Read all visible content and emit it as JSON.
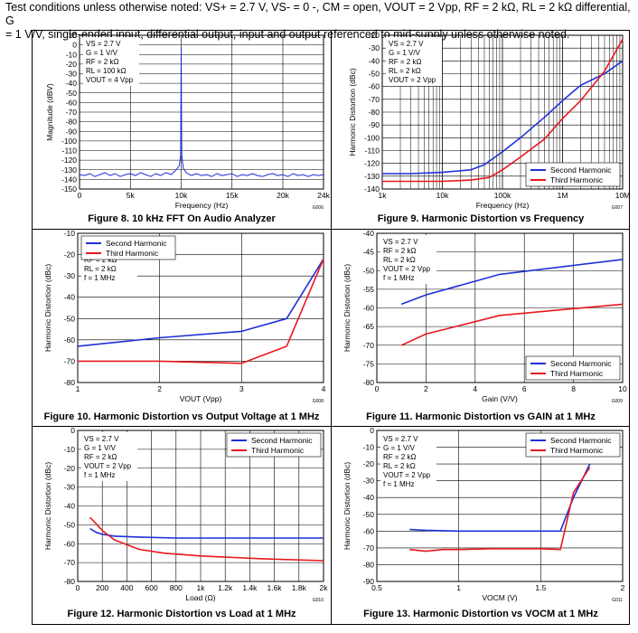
{
  "intro": {
    "line1": "Test conditions unless otherwise noted: VS+ = 2.7 V, VS- = 0 -, CM = open, VOUT = 2 Vpp, RF = 2 kΩ, RL = 2 kΩ differential, G",
    "line2": "= 1 V/V, single-ended input, differential output, input and output referenced to mid-supply unless otherwise noted."
  },
  "colors": {
    "second": "#1f2fd8",
    "third": "#e8181c",
    "fft": "#1f2fd8"
  },
  "captions": {
    "fig8": "Figure 8. 10 kHz FFT On Audio Analyzer",
    "fig9": "Figure 9. Harmonic Distortion vs Frequency",
    "fig10": "Figure 10. Harmonic Distortion vs Output Voltage at 1 MHz",
    "fig11": "Figure 11. Harmonic Distortion vs GAIN at 1 MHz",
    "fig12": "Figure 12. Harmonic Distortion vs Load at 1 MHz",
    "fig13": "Figure 13. Harmonic Distortion vs VOCM at 1 MHz"
  },
  "chart_data": [
    {
      "id": "fig8",
      "type": "line",
      "code": "G006",
      "xlabel": "Frequency (Hz)",
      "ylabel": "Magnitude (dBV)",
      "xlim": [
        0,
        24000
      ],
      "ylim": [
        -150,
        10
      ],
      "xticks": [
        0,
        5000,
        10000,
        15000,
        20000,
        24000
      ],
      "xticklabels": [
        "0",
        "5k",
        "10k",
        "15k",
        "20k",
        "24k"
      ],
      "yticks": [
        10,
        0,
        -10,
        -20,
        -30,
        -40,
        -50,
        -60,
        -70,
        -80,
        -90,
        -100,
        -110,
        -120,
        -130,
        -140,
        -150
      ],
      "annotations": [
        "VS = 2.7 V",
        "G = 1 V/V",
        "RF = 2 kΩ",
        "RL = 100 kΩ",
        "VOUT = 4 Vpp"
      ],
      "series": [
        {
          "x": [
            0,
            500,
            1000,
            1500,
            2000,
            2500,
            3000,
            3500,
            4000,
            4500,
            5000,
            5500,
            6000,
            6500,
            7000,
            7500,
            8000,
            8500,
            9000,
            9500,
            9800,
            9950,
            10000,
            10050,
            10200,
            10500,
            11000,
            11500,
            12000,
            12500,
            13000,
            13500,
            14000,
            14500,
            15000,
            15500,
            16000,
            16500,
            17000,
            17500,
            18000,
            18500,
            19000,
            19500,
            20000,
            20500,
            21000,
            21500,
            22000,
            22500,
            23000,
            23500,
            24000
          ],
          "values": [
            -135,
            -136,
            -134,
            -137,
            -135,
            -133,
            -136,
            -134,
            -137,
            -135,
            -134,
            -136,
            -133,
            -135,
            -137,
            -134,
            -136,
            -133,
            -135,
            -130,
            -126,
            -115,
            -3,
            -115,
            -128,
            -133,
            -136,
            -134,
            -136,
            -135,
            -137,
            -134,
            -136,
            -135,
            -134,
            -137,
            -135,
            -136,
            -134,
            -136,
            -137,
            -135,
            -134,
            -136,
            -135,
            -137,
            -134,
            -136,
            -135,
            -137,
            -135,
            -136,
            -135
          ]
        }
      ]
    },
    {
      "id": "fig9",
      "type": "line",
      "code": "G007",
      "xscale": "log",
      "xlabel": "Frequency (Hz)",
      "ylabel": "Harmonic Distortion (dBc)",
      "xlim": [
        1000,
        10000000
      ],
      "ylim": [
        -140,
        -20
      ],
      "xticks": [
        1000,
        10000,
        100000,
        1000000,
        10000000
      ],
      "xticklabels": [
        "1k",
        "10k",
        "100k",
        "1M",
        "10M"
      ],
      "yticks": [
        -20,
        -30,
        -40,
        -50,
        -60,
        -70,
        -80,
        -90,
        -100,
        -110,
        -120,
        -130,
        -140
      ],
      "annotations": [
        "VS = 2.7 V",
        "G = 1 V/V",
        "RF = 2 kΩ",
        "RL = 2 kΩ",
        "VOUT = 2 Vpp"
      ],
      "legend": "bottom-right",
      "series": [
        {
          "name": "Second Harmonic",
          "color": "second",
          "x": [
            1000,
            3000,
            10000,
            30000,
            50000,
            100000,
            200000,
            500000,
            1000000,
            2000000,
            5000000,
            10000000
          ],
          "values": [
            -128,
            -128,
            -127,
            -125,
            -121,
            -111,
            -100,
            -84,
            -71,
            -59,
            -50,
            -40
          ]
        },
        {
          "name": "Third Harmonic",
          "color": "third",
          "x": [
            1000,
            10000,
            30000,
            60000,
            100000,
            200000,
            500000,
            1000000,
            2000000,
            5000000,
            10000000
          ],
          "values": [
            -134,
            -134,
            -133,
            -131,
            -125,
            -115,
            -101,
            -85,
            -71,
            -48,
            -23
          ]
        }
      ]
    },
    {
      "id": "fig10",
      "type": "line",
      "code": "G008",
      "xlabel": "VOUT (Vpp)",
      "ylabel": "Harmonic Distortion (dBc)",
      "xlim": [
        1,
        4
      ],
      "ylim": [
        -80,
        -10
      ],
      "xticks": [
        1,
        2,
        3,
        4
      ],
      "xticklabels": [
        "1",
        "2",
        "3",
        "4"
      ],
      "yticks": [
        -10,
        -20,
        -30,
        -40,
        -50,
        -60,
        -70,
        -80
      ],
      "annotations": [
        "VS = 2.7 V",
        "G = 1 V/V",
        "RF = 2 kΩ",
        "RL = 2 kΩ",
        "f = 1 MHz"
      ],
      "legend": "top-left",
      "series": [
        {
          "name": "Second Harmonic",
          "color": "second",
          "x": [
            1,
            2,
            3,
            3.55,
            4
          ],
          "values": [
            -63,
            -59,
            -56,
            -50,
            -22
          ]
        },
        {
          "name": "Third Harmonic",
          "color": "third",
          "x": [
            1,
            2,
            3,
            3.55,
            4
          ],
          "values": [
            -70,
            -70,
            -71,
            -63,
            -22
          ]
        }
      ]
    },
    {
      "id": "fig11",
      "type": "line",
      "code": "G009",
      "xlabel": "Gain (V/V)",
      "ylabel": "Harmonic Distortion (dBc)",
      "xlim": [
        0,
        10
      ],
      "ylim": [
        -80,
        -40
      ],
      "xticks": [
        0,
        2,
        4,
        6,
        8,
        10
      ],
      "xticklabels": [
        "0",
        "2",
        "4",
        "6",
        "8",
        "10"
      ],
      "yticks": [
        -40,
        -45,
        -50,
        -55,
        -60,
        -65,
        -70,
        -75,
        -80
      ],
      "annotations": [
        "VS = 2.7 V",
        "RF = 2 kΩ",
        "RL = 2 kΩ",
        "VOUT = 2 Vpp",
        "f = 1 MHz"
      ],
      "legend": "bottom-right",
      "series": [
        {
          "name": "Second Harmonic",
          "color": "second",
          "x": [
            1,
            2,
            5,
            10
          ],
          "values": [
            -59,
            -56.5,
            -51,
            -47
          ]
        },
        {
          "name": "Third Harmonic",
          "color": "third",
          "x": [
            1,
            2,
            5,
            10
          ],
          "values": [
            -70,
            -67,
            -62,
            -59
          ]
        }
      ]
    },
    {
      "id": "fig12",
      "type": "line",
      "code": "G010",
      "xlabel": "Load (Ω)",
      "ylabel": "Harmonic Distortion (dBc)",
      "xlim": [
        0,
        2000
      ],
      "ylim": [
        -80,
        0
      ],
      "xticks": [
        0,
        200,
        400,
        600,
        800,
        1000,
        1200,
        1400,
        1600,
        1800,
        2000
      ],
      "xticklabels": [
        "0",
        "200",
        "400",
        "600",
        "800",
        "1k",
        "1.2k",
        "1.4k",
        "1.6k",
        "1.8k",
        "2k"
      ],
      "yticks": [
        0,
        -10,
        -20,
        -30,
        -40,
        -50,
        -60,
        -70,
        -80
      ],
      "annotations": [
        "VS = 2.7 V",
        "G = 1 V/V",
        "RF = 2 kΩ",
        "VOUT = 2 Vpp",
        "f = 1 MHz"
      ],
      "legend": "top-right",
      "series": [
        {
          "name": "Second Harmonic",
          "color": "second",
          "x": [
            100,
            150,
            200,
            300,
            500,
            800,
            1200,
            2000
          ],
          "values": [
            -52,
            -54,
            -55,
            -56,
            -56.5,
            -57,
            -57,
            -57
          ]
        },
        {
          "name": "Third Harmonic",
          "color": "third",
          "x": [
            100,
            200,
            300,
            500,
            700,
            1000,
            1500,
            2000
          ],
          "values": [
            -46,
            -53,
            -58,
            -63,
            -65,
            -66.5,
            -68,
            -69
          ]
        }
      ]
    },
    {
      "id": "fig13",
      "type": "line",
      "code": "G011",
      "xlabel": "VOCM (V)",
      "ylabel": "Harmonic Distortion (dBc)",
      "xlim": [
        0.5,
        2
      ],
      "ylim": [
        -90,
        0
      ],
      "xticks": [
        0.5,
        1,
        1.5,
        2
      ],
      "xticklabels": [
        "0.5",
        "1",
        "1.5",
        "2"
      ],
      "yticks": [
        0,
        -10,
        -20,
        -30,
        -40,
        -50,
        -60,
        -70,
        -80,
        -90
      ],
      "annotations": [
        "VS = 2.7 V",
        "G = 1 V/V",
        "RF = 2 kΩ",
        "RL = 2 kΩ",
        "VOUT = 2 Vpp",
        "f = 1 MHz"
      ],
      "legend": "top-right",
      "series": [
        {
          "name": "Second Harmonic",
          "color": "second",
          "x": [
            0.7,
            0.8,
            1.0,
            1.2,
            1.5,
            1.62,
            1.7,
            1.8
          ],
          "values": [
            -59,
            -59.5,
            -60,
            -60,
            -60,
            -60,
            -40,
            -20
          ]
        },
        {
          "name": "Third Harmonic",
          "color": "third",
          "x": [
            0.7,
            0.8,
            0.9,
            1.0,
            1.2,
            1.5,
            1.62,
            1.7,
            1.8
          ],
          "values": [
            -71,
            -72,
            -71,
            -71,
            -70.5,
            -70.5,
            -71,
            -37,
            -22
          ]
        }
      ]
    }
  ]
}
